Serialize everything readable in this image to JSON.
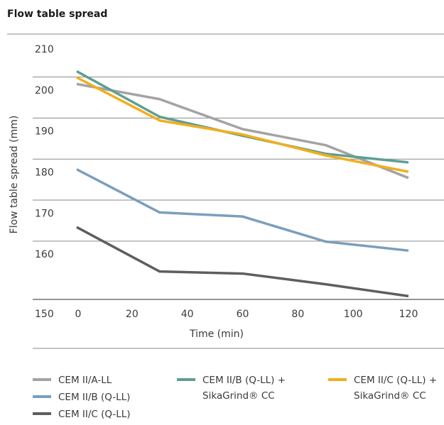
{
  "chart_data": {
    "type": "line",
    "title": "Flow table spread",
    "xlabel": "Time (min)",
    "ylabel": "Flow table spread (mm)",
    "xlim": [
      0,
      120
    ],
    "ylim": [
      150,
      210
    ],
    "x_ticks": [
      "0",
      "20",
      "40",
      "60",
      "80",
      "100",
      "120"
    ],
    "y_ticks": [
      "150",
      "160",
      "170",
      "180",
      "190",
      "200",
      "210"
    ],
    "grid": "horizontal",
    "legend_position": "bottom",
    "series": [
      {
        "name": "CEM II/A-LL",
        "color": "#a3a3a3",
        "x": [
          0,
          30,
          60,
          90,
          120
        ],
        "values": [
          202.5,
          198.8,
          191.5,
          187.6,
          179.6
        ]
      },
      {
        "name": "CEM II/B (Q-LL) +\nSikaGrind® CC",
        "color": "#5f9e93",
        "x": [
          0,
          30,
          60,
          90,
          120
        ],
        "values": [
          205.6,
          194.5,
          189.9,
          185.5,
          183.4
        ]
      },
      {
        "name": "CEM II/C (Q-LL) +\nSikaGrind® CC",
        "color": "#f2ae1c",
        "x": [
          0,
          30,
          60,
          90,
          120
        ],
        "values": [
          204.1,
          193.6,
          190.2,
          185.1,
          181.1
        ]
      },
      {
        "name": "CEM II/B (Q-LL)",
        "color": "#7a9fbd",
        "x": [
          0,
          30,
          60,
          90,
          120
        ],
        "values": [
          181.7,
          171.2,
          170.2,
          164.1,
          161.9
        ]
      },
      {
        "name": "CEM II/C (Q-LL)",
        "color": "#5e5e5e",
        "x": [
          0,
          30,
          60,
          90,
          120
        ],
        "values": [
          167.6,
          156.8,
          156.3,
          153.7,
          150.8
        ]
      }
    ]
  }
}
